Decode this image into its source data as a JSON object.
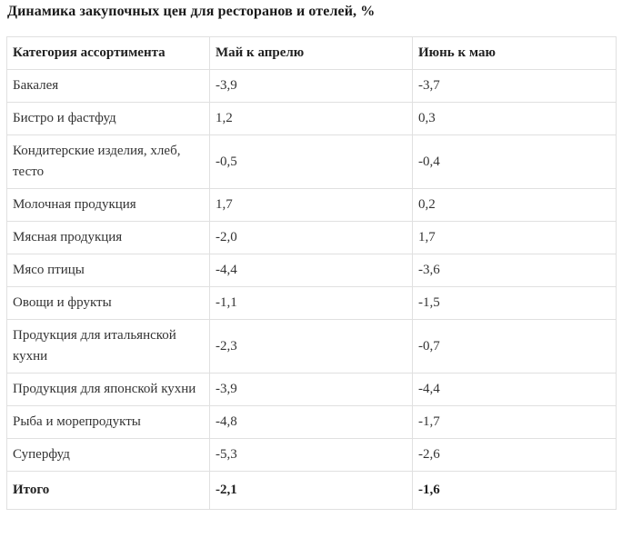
{
  "page": {
    "title": "Динамика закупочных цен для ресторанов и отелей, %"
  },
  "table": {
    "columns": [
      "Категория ассортимента",
      "Май к апрелю",
      "Июнь к маю"
    ],
    "rows": [
      {
        "category": "Бакалея",
        "may": "-3,9",
        "june": "-3,7",
        "bold": false
      },
      {
        "category": "Бистро и фастфуд",
        "may": "1,2",
        "june": "0,3",
        "bold": false
      },
      {
        "category": "Кондитерские изделия, хлеб, тесто",
        "may": "-0,5",
        "june": "-0,4",
        "bold": false
      },
      {
        "category": "Молочная продукция",
        "may": "1,7",
        "june": "0,2",
        "bold": false
      },
      {
        "category": "Мясная продукция",
        "may": "-2,0",
        "june": "1,7",
        "bold": false
      },
      {
        "category": "Мясо птицы",
        "may": "-4,4",
        "june": "-3,6",
        "bold": false
      },
      {
        "category": "Овощи и фрукты",
        "may": "-1,1",
        "june": "-1,5",
        "bold": false
      },
      {
        "category": "Продукция для итальянской кухни",
        "may": "-2,3",
        "june": "-0,7",
        "bold": false
      },
      {
        "category": "Продукция для японской кухни",
        "may": "-3,9",
        "june": "-4,4",
        "bold": false
      },
      {
        "category": "Рыба и морепродукты",
        "may": "-4,8",
        "june": "-1,7",
        "bold": false
      },
      {
        "category": "Суперфуд",
        "may": "-5,3",
        "june": "-2,6",
        "bold": false
      },
      {
        "category": "Итого",
        "may": "-2,1",
        "june": "-1,6",
        "bold": true
      }
    ]
  },
  "chart_data": {
    "type": "table",
    "title": "Динамика закупочных цен для ресторанов и отелей, %",
    "categories": [
      "Бакалея",
      "Бистро и фастфуд",
      "Кондитерские изделия, хлеб, тесто",
      "Молочная продукция",
      "Мясная продукция",
      "Мясо птицы",
      "Овощи и фрукты",
      "Продукция для итальянской кухни",
      "Продукция для японской кухни",
      "Рыба и морепродукты",
      "Суперфуд",
      "Итого"
    ],
    "series": [
      {
        "name": "Май к апрелю",
        "values": [
          -3.9,
          1.2,
          -0.5,
          1.7,
          -2.0,
          -4.4,
          -1.1,
          -2.3,
          -3.9,
          -4.8,
          -5.3,
          -2.1
        ]
      },
      {
        "name": "Июнь к маю",
        "values": [
          -3.7,
          0.3,
          -0.4,
          0.2,
          1.7,
          -3.6,
          -1.5,
          -0.7,
          -4.4,
          -1.7,
          -2.6,
          -1.6
        ]
      }
    ],
    "value_unit": "%",
    "decimal_separator": ",",
    "layout": {
      "grid": "full-borders",
      "header_bold": true,
      "last_row_bold": true
    }
  },
  "colors": {
    "background": "#ffffff",
    "border": "#e0e0e0",
    "text": "#333333",
    "heading_text": "#1a1a1a"
  }
}
